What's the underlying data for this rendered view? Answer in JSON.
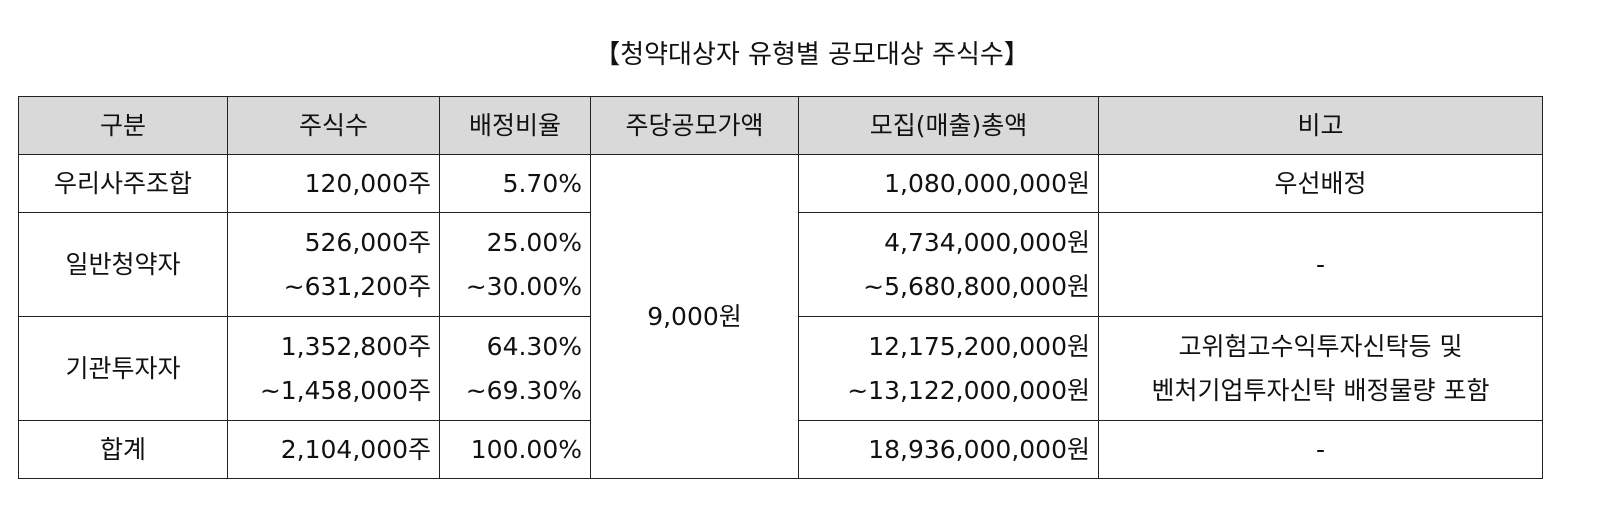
{
  "title": "【청약대상자 유형별 공모대상 주식수】",
  "headers": [
    "구분",
    "주식수",
    "배정비율",
    "주당공모가액",
    "모집(매출)총액",
    "비고"
  ],
  "price_per_share": "9,000원",
  "rows": [
    {
      "category": "우리사주조합",
      "shares": [
        "120,000주"
      ],
      "ratio": [
        "5.70%"
      ],
      "total": [
        "1,080,000,000원"
      ],
      "note": [
        "우선배정"
      ]
    },
    {
      "category": "일반청약자",
      "shares": [
        "526,000주",
        "~631,200주"
      ],
      "ratio": [
        "25.00%",
        "~30.00%"
      ],
      "total": [
        "4,734,000,000원",
        "~5,680,800,000원"
      ],
      "note": [
        "-"
      ]
    },
    {
      "category": "기관투자자",
      "shares": [
        "1,352,800주",
        "~1,458,000주"
      ],
      "ratio": [
        "64.30%",
        "~69.30%"
      ],
      "total": [
        "12,175,200,000원",
        "~13,122,000,000원"
      ],
      "note": [
        "고위험고수익투자신탁등 및",
        "벤처기업투자신탁 배정물량 포함"
      ]
    },
    {
      "category": "합계",
      "shares": [
        "2,104,000주"
      ],
      "ratio": [
        "100.00%"
      ],
      "total": [
        "18,936,000,000원"
      ],
      "note": [
        "-"
      ]
    }
  ]
}
